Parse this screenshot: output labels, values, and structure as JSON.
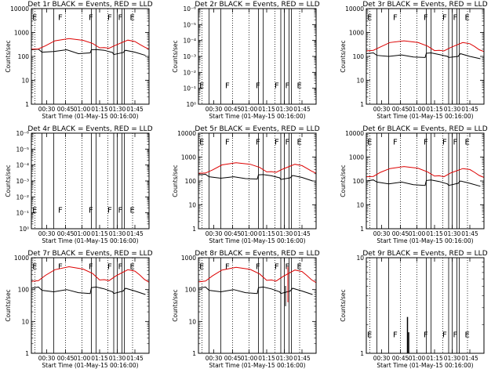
{
  "chart_data": [
    {
      "type": "line",
      "title": "Det 1r BLACK = Events, RED = LLD",
      "xlabel": "Start Time (01-May-15 00:16:00)",
      "ylabel": "Counts/sec",
      "yscale": "log",
      "yticks": [
        "1",
        "10",
        "100",
        "1000",
        "10000"
      ],
      "xticks": [
        "00:30",
        "00:45",
        "01:00",
        "01:15",
        "01:30",
        "01:45"
      ],
      "markers": [
        "E",
        "F",
        "F",
        "F",
        "F",
        "E"
      ],
      "series": [
        {
          "color": "#000000",
          "values": [
            190,
            200,
            150,
            160,
            190,
            130,
            140,
            190,
            195,
            180,
            145,
            120,
            145,
            180,
            150,
            110
          ]
        },
        {
          "color": "#dd0000",
          "values": [
            200,
            205,
            280,
            450,
            560,
            470,
            350,
            230,
            235,
            220,
            300,
            480,
            420,
            320,
            250,
            200
          ]
        }
      ]
    },
    {
      "type": "line",
      "title": "Det 2r BLACK = Events, RED = LLD",
      "xlabel": "Start Time (01-May-15 00:16:00)",
      "ylabel": "Counts/sec",
      "yscale": "log",
      "yticks": [
        "10⁰",
        "10⁻¹",
        "10⁻²",
        "10⁻³",
        "10⁻⁴",
        "10⁻⁵",
        "10⁻⁶"
      ],
      "xticks": [
        "00:30",
        "00:45",
        "01:00",
        "01:15",
        "01:30",
        "01:45"
      ],
      "markers": [
        "E",
        "F",
        "F",
        "F",
        "F",
        "E"
      ],
      "series": []
    },
    {
      "type": "line",
      "title": "Det 3r BLACK = Events, RED = LLD",
      "xlabel": "Start Time (01-May-15 00:16:00)",
      "ylabel": "Counts/sec",
      "yscale": "log",
      "yticks": [
        "1",
        "10",
        "100",
        "1000",
        "10000"
      ],
      "xticks": [
        "00:30",
        "00:45",
        "01:00",
        "01:15",
        "01:30",
        "01:45"
      ],
      "markers": [
        "E",
        "F",
        "F",
        "F",
        "F",
        "E"
      ],
      "series": [
        {
          "color": "#000000",
          "values": [
            130,
            140,
            110,
            100,
            115,
            95,
            90,
            135,
            140,
            120,
            100,
            90,
            100,
            130,
            100,
            80
          ]
        },
        {
          "color": "#dd0000",
          "values": [
            170,
            180,
            250,
            380,
            450,
            380,
            270,
            175,
            180,
            170,
            240,
            380,
            340,
            260,
            190,
            160
          ]
        }
      ]
    },
    {
      "type": "line",
      "title": "Det 4r BLACK = Events, RED = LLD",
      "xlabel": "Start Time (01-May-15 00:16:00)",
      "ylabel": "Counts/sec",
      "yscale": "log",
      "yticks": [
        "10⁰",
        "10⁻¹",
        "10⁻²",
        "10⁻³",
        "10⁻⁴",
        "10⁻⁵",
        "10⁻⁶"
      ],
      "xticks": [
        "00:30",
        "00:45",
        "01:00",
        "01:15",
        "01:30",
        "01:45"
      ],
      "markers": [
        "E",
        "F",
        "F",
        "F",
        "F",
        "E"
      ],
      "series": []
    },
    {
      "type": "line",
      "title": "Det 5r BLACK = Events, RED = LLD",
      "xlabel": "Start Time (01-May-15 00:16:00)",
      "ylabel": "Counts/sec",
      "yscale": "log",
      "yticks": [
        "1",
        "10",
        "100",
        "1000",
        "10000"
      ],
      "xticks": [
        "00:30",
        "00:45",
        "01:00",
        "01:15",
        "01:30",
        "01:45"
      ],
      "markers": [
        "E",
        "F",
        "F",
        "F",
        "F",
        "E"
      ],
      "series": [
        {
          "color": "#000000",
          "values": [
            180,
            190,
            150,
            130,
            150,
            125,
            120,
            180,
            185,
            165,
            135,
            115,
            135,
            170,
            140,
            100
          ]
        },
        {
          "color": "#dd0000",
          "values": [
            210,
            215,
            290,
            470,
            580,
            500,
            370,
            240,
            245,
            230,
            320,
            500,
            440,
            340,
            260,
            210
          ]
        }
      ]
    },
    {
      "type": "line",
      "title": "Det 6r BLACK = Events, RED = LLD",
      "xlabel": "Start Time (01-May-15 00:16:00)",
      "ylabel": "Counts/sec",
      "yscale": "log",
      "yticks": [
        "1",
        "10",
        "100",
        "1000",
        "10000"
      ],
      "xticks": [
        "00:30",
        "00:45",
        "01:00",
        "01:15",
        "01:30",
        "01:45"
      ],
      "markers": [
        "E",
        "F",
        "F",
        "F",
        "F",
        "E"
      ],
      "series": [
        {
          "color": "#000000",
          "values": [
            100,
            110,
            90,
            75,
            90,
            70,
            65,
            105,
            110,
            95,
            75,
            65,
            80,
            100,
            80,
            60
          ]
        },
        {
          "color": "#dd0000",
          "values": [
            150,
            155,
            230,
            330,
            400,
            340,
            240,
            160,
            165,
            150,
            220,
            330,
            300,
            230,
            170,
            140
          ]
        }
      ]
    },
    {
      "type": "line",
      "title": "Det 7r BLACK = Events, RED = LLD",
      "xlabel": "Start Time (01-May-15 00:16:00)",
      "ylabel": "Counts/sec",
      "yscale": "log",
      "yticks": [
        "1",
        "10",
        "100",
        "1000"
      ],
      "xticks": [
        "00:30",
        "00:45",
        "01:00",
        "01:15",
        "01:30",
        "01:45"
      ],
      "markers": [
        "E",
        "F",
        "F",
        "F",
        "F",
        "E"
      ],
      "series": [
        {
          "color": "#000000",
          "values": [
            110,
            120,
            95,
            85,
            100,
            80,
            75,
            115,
            120,
            105,
            85,
            75,
            90,
            110,
            90,
            70
          ]
        },
        {
          "color": "#dd0000",
          "values": [
            180,
            190,
            280,
            420,
            520,
            440,
            320,
            200,
            205,
            190,
            270,
            420,
            380,
            290,
            210,
            170
          ]
        }
      ]
    },
    {
      "type": "line",
      "title": "Det 8r BLACK = Events, RED = LLD",
      "xlabel": "Start Time (01-May-15 00:16:00)",
      "ylabel": "Counts/sec",
      "yscale": "log",
      "yticks": [
        "1",
        "10",
        "100",
        "1000"
      ],
      "xticks": [
        "00:30",
        "00:45",
        "01:00",
        "01:15",
        "01:30",
        "01:45"
      ],
      "markers": [
        "E",
        "F",
        "F",
        "F",
        "F",
        "E"
      ],
      "series": [
        {
          "color": "#000000",
          "values": [
            110,
            120,
            95,
            85,
            100,
            80,
            75,
            115,
            120,
            105,
            85,
            75,
            90,
            110,
            90,
            70
          ]
        },
        {
          "color": "#dd0000",
          "values": [
            175,
            185,
            270,
            410,
            500,
            430,
            310,
            195,
            200,
            185,
            260,
            410,
            370,
            280,
            205,
            165
          ]
        }
      ]
    },
    {
      "type": "line",
      "title": "Det 9r BLACK = Events, RED = LLD",
      "xlabel": "Start Time (01-May-15 00:16:00)",
      "ylabel": "Counts/sec",
      "yscale": "log",
      "yticks": [
        "1",
        "10"
      ],
      "xticks": [
        "00:30",
        "00:45",
        "01:00",
        "01:15",
        "01:30",
        "01:45"
      ],
      "markers": [
        "E",
        "F",
        "F",
        "F",
        "F",
        "E"
      ],
      "series": []
    }
  ]
}
